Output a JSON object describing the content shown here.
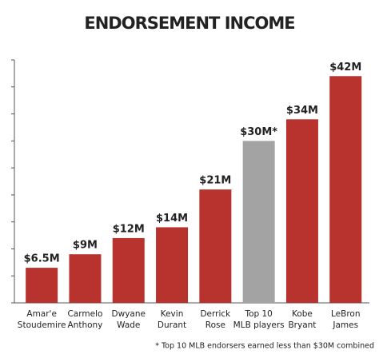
{
  "chart_data": {
    "type": "bar",
    "title": "ENDORSEMENT INCOME",
    "categories": [
      [
        "Amar'e",
        "Stoudemire"
      ],
      [
        "Carmelo",
        "Anthony"
      ],
      [
        "Dwyane",
        "Wade"
      ],
      [
        "Kevin",
        "Durant"
      ],
      [
        "Derrick",
        "Rose"
      ],
      [
        "Top 10",
        "MLB players"
      ],
      [
        "Kobe",
        "Bryant"
      ],
      [
        "LeBron",
        "James"
      ]
    ],
    "values": [
      6.5,
      9,
      12,
      14,
      21,
      30,
      34,
      42
    ],
    "value_labels": [
      "$6.5M",
      "$9M",
      "$12M",
      "$14M",
      "$21M",
      "$30M*",
      "$34M",
      "$42M"
    ],
    "colors": [
      "#b8322e",
      "#b8322e",
      "#b8322e",
      "#b8322e",
      "#b8322e",
      "#a3a3a3",
      "#b8322e",
      "#b8322e"
    ],
    "ylim": [
      0,
      45
    ],
    "yticks": [
      0,
      5,
      10,
      15,
      20,
      25,
      30,
      35,
      40,
      45
    ],
    "footnote": "* Top 10 MLB endorsers earned less than $30M combined"
  }
}
